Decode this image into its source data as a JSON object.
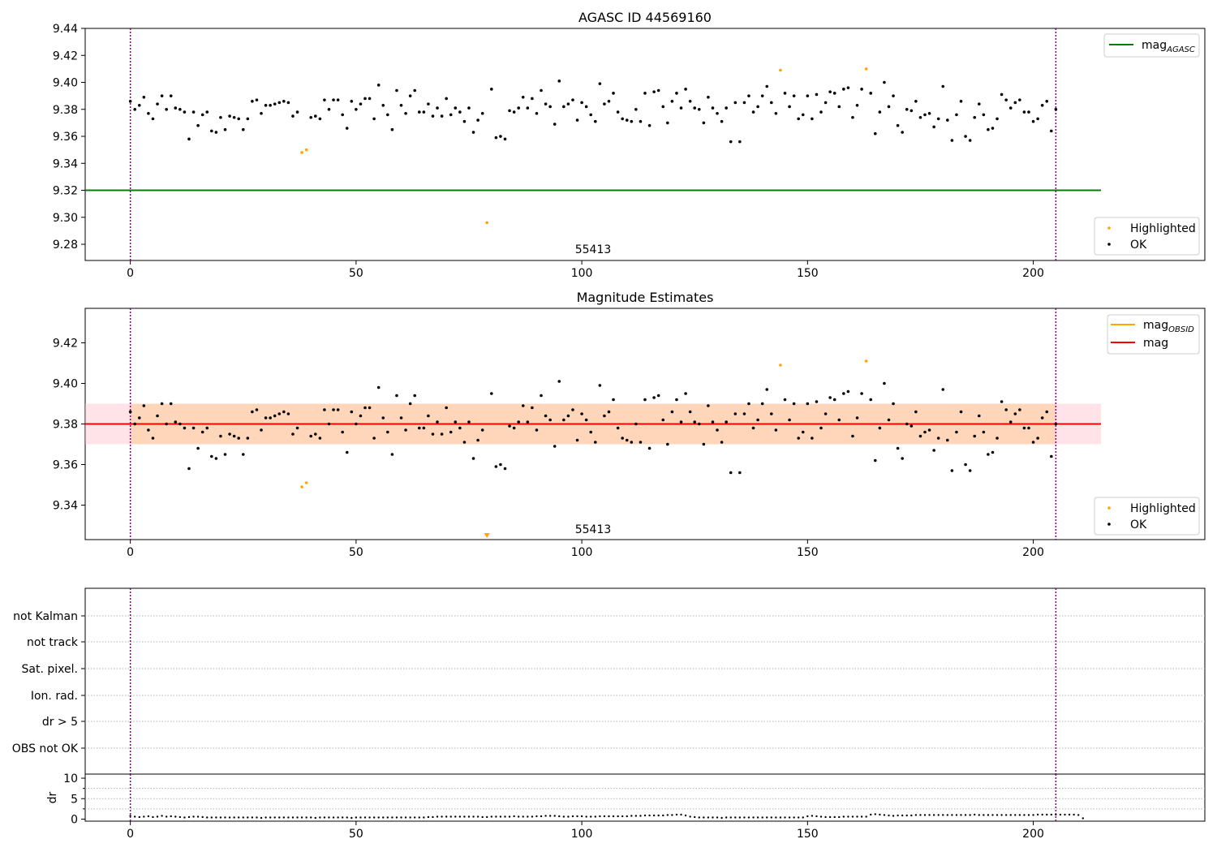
{
  "chart_data": [
    {
      "type": "scatter",
      "title": "AGASC ID 44569160",
      "xlabel": "",
      "ylabel": "",
      "xlim": [
        -10,
        238
      ],
      "ylim": [
        9.268,
        9.44
      ],
      "xticks": [
        0,
        50,
        100,
        150,
        200
      ],
      "yticks": [
        9.28,
        9.3,
        9.32,
        9.34,
        9.36,
        9.38,
        9.4,
        9.42,
        9.44
      ],
      "ytick_labels": [
        "9.28",
        "9.30",
        "9.32",
        "9.34",
        "9.36",
        "9.38",
        "9.40",
        "9.42",
        "9.44"
      ],
      "obsid_label": {
        "text": "55413",
        "x": 102.5
      },
      "vlines": [
        0,
        205
      ],
      "hline": {
        "name": "mag",
        "subscript": "AGASC",
        "y": 9.32,
        "x": [
          -10,
          215
        ],
        "color": "#008000"
      },
      "legends": [
        {
          "position": "upper-right",
          "items": [
            {
              "label": "mag",
              "subscript": "AGASC",
              "kind": "line",
              "color": "#008000"
            }
          ]
        },
        {
          "position": "lower-right",
          "items": [
            {
              "label": "Highlighted",
              "kind": "dot",
              "color": "#ffa500"
            },
            {
              "label": "OK",
              "kind": "dot",
              "color": "#000000"
            }
          ]
        }
      ],
      "series": [
        {
          "name": "Highlighted",
          "color": "#ffa500",
          "points": [
            [
              38,
              9.348
            ],
            [
              39,
              9.35
            ],
            [
              79,
              9.296
            ],
            [
              144,
              9.409
            ],
            [
              163,
              9.41
            ]
          ]
        }
      ]
    },
    {
      "type": "scatter",
      "title": "Magnitude Estimates",
      "xlabel": "",
      "ylabel": "",
      "xlim": [
        -10,
        238
      ],
      "ylim": [
        9.323,
        9.437
      ],
      "xticks": [
        0,
        50,
        100,
        150,
        200
      ],
      "yticks": [
        9.34,
        9.36,
        9.38,
        9.4,
        9.42
      ],
      "ytick_labels": [
        "9.34",
        "9.36",
        "9.38",
        "9.40",
        "9.42"
      ],
      "obsid_label": {
        "text": "55413",
        "x": 102.5
      },
      "vlines": [
        0,
        205
      ],
      "bands": [
        {
          "x": [
            -10,
            215
          ],
          "y": [
            9.37,
            9.39
          ],
          "color": "#ffc0cb",
          "opacity": 0.45
        },
        {
          "x": [
            0,
            205
          ],
          "y": [
            9.37,
            9.39
          ],
          "color": "#ffa500",
          "opacity": 0.2
        }
      ],
      "lines": [
        {
          "name": "mag",
          "subscript": "OBSID",
          "color": "#ffa500",
          "x": [
            0,
            205
          ],
          "y": 9.38
        },
        {
          "name": "mag",
          "color": "#ff0000",
          "x": [
            -10,
            215
          ],
          "y": 9.38
        }
      ],
      "legends": [
        {
          "position": "upper-right",
          "items": [
            {
              "label": "mag",
              "subscript": "OBSID",
              "kind": "line",
              "color": "#ffa500"
            },
            {
              "label": "mag",
              "kind": "line",
              "color": "#ff0000"
            }
          ]
        },
        {
          "position": "lower-right",
          "items": [
            {
              "label": "Highlighted",
              "kind": "dot",
              "color": "#ffa500"
            },
            {
              "label": "OK",
              "kind": "dot",
              "color": "#000000"
            }
          ]
        }
      ],
      "series": [
        {
          "name": "Highlighted",
          "color": "#ffa500",
          "points": [
            [
              38,
              9.349
            ],
            [
              39,
              9.351
            ],
            [
              144,
              9.409
            ],
            [
              163,
              9.411
            ]
          ]
        },
        {
          "name": "Highlighted",
          "marker": "triangle-down",
          "color": "#ffa500",
          "points": [
            [
              79,
              9.325
            ]
          ]
        }
      ]
    },
    {
      "type": "scatter",
      "title": "",
      "xlim": [
        -10,
        238
      ],
      "flags": [
        "not Kalman",
        "not track",
        "Sat. pixel.",
        "Ion. rad.",
        "dr > 5",
        "OBS not OK"
      ],
      "vlines": [
        0,
        205
      ]
    },
    {
      "type": "scatter",
      "title": "",
      "xlabel": "",
      "ylabel": "dr",
      "xlim": [
        -10,
        238
      ],
      "ylim": [
        -0.5,
        11
      ],
      "xticks": [
        0,
        50,
        100,
        150,
        200
      ],
      "yticks": [
        0,
        5,
        10
      ],
      "ytick_labels": [
        "0",
        "5",
        "10"
      ],
      "vlines": [
        0,
        205
      ],
      "series": [
        {
          "name": "dr",
          "color": "#000000",
          "y": [
            0.8,
            0.6,
            0.5,
            0.6,
            0.7,
            0.5,
            0.6,
            0.8,
            0.6,
            0.7,
            0.6,
            0.5,
            0.4,
            0.5,
            0.6,
            0.6,
            0.5,
            0.4,
            0.4,
            0.4,
            0.4,
            0.4,
            0.4,
            0.4,
            0.4,
            0.4,
            0.4,
            0.4,
            0.4,
            0.3,
            0.4,
            0.4,
            0.4,
            0.4,
            0.4,
            0.4,
            0.4,
            0.4,
            0.4,
            0.4,
            0.4,
            0.3,
            0.4,
            0.4,
            0.4,
            0.4,
            0.4,
            0.4,
            0.4,
            0.3,
            0.4,
            0.4,
            0.4,
            0.4,
            0.4,
            0.4,
            0.4,
            0.4,
            0.4,
            0.4,
            0.4,
            0.4,
            0.4,
            0.4,
            0.4,
            0.4,
            0.5,
            0.5,
            0.6,
            0.6,
            0.6,
            0.6,
            0.6,
            0.6,
            0.6,
            0.6,
            0.6,
            0.6,
            0.5,
            0.5,
            0.6,
            0.6,
            0.6,
            0.6,
            0.6,
            0.7,
            0.6,
            0.6,
            0.6,
            0.6,
            0.7,
            0.7,
            0.8,
            0.8,
            0.8,
            0.7,
            0.6,
            0.6,
            0.7,
            0.7,
            0.7,
            0.6,
            0.6,
            0.6,
            0.7,
            0.7,
            0.7,
            0.7,
            0.7,
            0.7,
            0.7,
            0.8,
            0.8,
            0.8,
            0.9,
            0.9,
            0.9,
            0.9,
            0.9,
            1.0,
            1.0,
            1.1,
            1.1,
            0.9,
            0.6,
            0.5,
            0.4,
            0.4,
            0.4,
            0.4,
            0.4,
            0.3,
            0.4,
            0.4,
            0.4,
            0.4,
            0.4,
            0.4,
            0.4,
            0.4,
            0.4,
            0.4,
            0.4,
            0.4,
            0.4,
            0.4,
            0.4,
            0.4,
            0.4,
            0.4,
            0.7,
            0.8,
            0.7,
            0.6,
            0.5,
            0.5,
            0.5,
            0.5,
            0.6,
            0.6,
            0.6,
            0.6,
            0.6,
            0.6,
            1.1,
            1.2,
            1.1,
            1.0,
            0.9,
            0.8,
            0.9,
            0.9,
            0.9,
            0.9,
            1.0,
            1.0,
            1.0,
            1.0,
            1.0,
            1.0,
            1.0,
            1.0,
            1.0,
            1.0,
            1.0,
            1.0,
            1.0,
            1.1,
            1.0,
            1.0,
            1.0,
            1.0,
            1.0,
            1.0,
            1.0,
            1.0,
            1.0,
            1.0,
            1.0,
            1.0,
            1.0,
            1.1,
            1.1,
            1.1,
            1.1,
            1.1,
            1.1,
            1.1,
            1.1,
            1.1,
            1.0,
            0.2
          ]
        }
      ]
    }
  ],
  "ok_magnitudes": [
    9.386,
    9.38,
    9.383,
    9.389,
    9.377,
    9.373,
    9.384,
    9.39,
    9.38,
    9.39,
    9.381,
    9.38,
    9.378,
    9.358,
    9.378,
    9.368,
    9.376,
    9.378,
    9.364,
    9.363,
    9.374,
    9.365,
    9.375,
    9.374,
    9.373,
    9.365,
    9.373,
    9.386,
    9.387,
    9.377,
    9.383,
    9.383,
    9.384,
    9.385,
    9.386,
    9.385,
    9.375,
    9.378,
    null,
    null,
    9.374,
    9.375,
    9.373,
    9.387,
    9.38,
    9.387,
    9.387,
    9.376,
    9.366,
    9.386,
    9.38,
    9.384,
    9.388,
    9.388,
    9.373,
    9.398,
    9.383,
    9.376,
    9.365,
    9.394,
    9.383,
    9.377,
    9.39,
    9.394,
    9.378,
    9.378,
    9.384,
    9.375,
    9.381,
    9.375,
    9.388,
    9.376,
    9.381,
    9.378,
    9.371,
    9.381,
    9.363,
    9.372,
    9.377,
    null,
    9.395,
    9.359,
    9.36,
    9.358,
    9.379,
    9.378,
    9.381,
    9.389,
    9.381,
    9.388,
    9.377,
    9.394,
    9.384,
    9.382,
    9.369,
    9.401,
    9.382,
    9.384,
    9.387,
    9.372,
    9.385,
    9.382,
    9.376,
    9.371,
    9.399,
    9.384,
    9.386,
    9.392,
    9.378,
    9.373,
    9.372,
    9.371,
    9.38,
    9.371,
    9.392,
    9.368,
    9.393,
    9.394,
    9.382,
    9.37,
    9.386,
    9.392,
    9.381,
    9.395,
    9.386,
    9.381,
    9.38,
    9.37,
    9.389,
    9.381,
    9.377,
    9.371,
    9.381,
    9.356,
    9.385,
    9.356,
    9.385,
    9.39,
    9.378,
    9.382,
    9.39,
    9.397,
    9.385,
    9.377,
    null,
    9.392,
    9.382,
    9.39,
    9.373,
    9.376,
    9.39,
    9.373,
    9.391,
    9.378,
    9.385,
    9.393,
    9.392,
    9.382,
    9.395,
    9.396,
    9.374,
    9.383,
    9.395,
    null,
    9.392,
    9.362,
    9.378,
    9.4,
    9.382,
    9.39,
    9.368,
    9.363,
    9.38,
    9.379,
    9.386,
    9.374,
    9.376,
    9.377,
    9.367,
    9.373,
    9.397,
    9.372,
    9.357,
    9.376,
    9.386,
    9.36,
    9.357,
    9.374,
    9.384,
    9.376,
    9.365,
    9.366,
    9.373,
    9.391,
    9.387,
    9.381,
    9.385,
    9.387,
    9.378,
    9.378,
    9.371,
    9.373,
    9.383,
    9.386,
    9.364,
    9.38
  ]
}
